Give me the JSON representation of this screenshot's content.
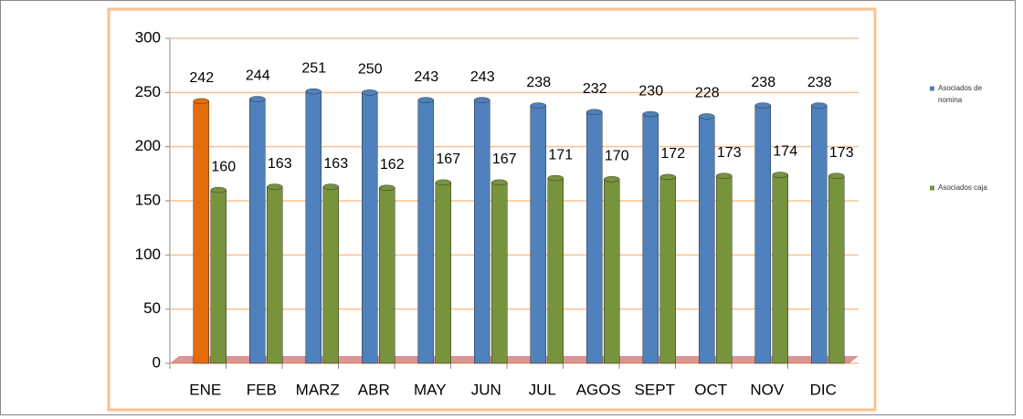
{
  "chart_data": {
    "type": "bar",
    "categories": [
      "ENE",
      "FEB",
      "MARZ",
      "ABR",
      "MAY",
      "JUN",
      "JUL",
      "AGOS",
      "SEPT",
      "OCT",
      "NOV",
      "DIC"
    ],
    "series": [
      {
        "name": "Asociados de nomina",
        "color": "#4f81bd",
        "colors": [
          "#e46c0a",
          "#4f81bd",
          "#4f81bd",
          "#4f81bd",
          "#4f81bd",
          "#4f81bd",
          "#4f81bd",
          "#4f81bd",
          "#4f81bd",
          "#4f81bd",
          "#4f81bd",
          "#4f81bd"
        ],
        "values": [
          242,
          244,
          251,
          250,
          243,
          243,
          238,
          232,
          230,
          228,
          238,
          238
        ]
      },
      {
        "name": "Asociados caja",
        "color": "#77933c",
        "values": [
          160,
          163,
          163,
          162,
          167,
          167,
          171,
          170,
          172,
          173,
          174,
          173
        ]
      }
    ],
    "ylim": [
      0,
      300
    ],
    "yticks": [
      0,
      50,
      100,
      150,
      200,
      250,
      300
    ],
    "grid": true,
    "legend": "right"
  }
}
